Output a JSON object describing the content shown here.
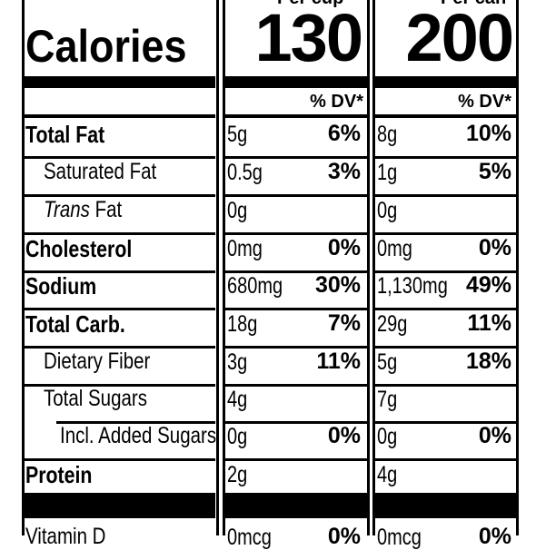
{
  "columns": [
    {
      "serving_header": "Per cup",
      "calories": "130"
    },
    {
      "serving_header": "Per can",
      "calories": "200"
    }
  ],
  "calories_label": "Calories",
  "dv_header": "% DV*",
  "rows": [
    {
      "label": "Total Fat",
      "bold": true,
      "italic_prefix": "",
      "values": [
        {
          "amount": "5g",
          "dv": "6%"
        },
        {
          "amount": "8g",
          "dv": "10%"
        }
      ]
    },
    {
      "label": "Saturated Fat",
      "bold": false,
      "italic_prefix": "",
      "values": [
        {
          "amount": "0.5g",
          "dv": "3%"
        },
        {
          "amount": "1g",
          "dv": "5%"
        }
      ]
    },
    {
      "label": "Fat",
      "bold": false,
      "italic_prefix": "Trans",
      "values": [
        {
          "amount": "0g",
          "dv": ""
        },
        {
          "amount": "0g",
          "dv": ""
        }
      ]
    },
    {
      "label": "Cholesterol",
      "bold": true,
      "italic_prefix": "",
      "values": [
        {
          "amount": "0mg",
          "dv": "0%"
        },
        {
          "amount": "0mg",
          "dv": "0%"
        }
      ]
    },
    {
      "label": "Sodium",
      "bold": true,
      "italic_prefix": "",
      "values": [
        {
          "amount": "680mg",
          "dv": "30%"
        },
        {
          "amount": "1,130mg",
          "dv": "49%"
        }
      ]
    },
    {
      "label": "Total Carb.",
      "bold": true,
      "italic_prefix": "",
      "values": [
        {
          "amount": "18g",
          "dv": "7%"
        },
        {
          "amount": "29g",
          "dv": "11%"
        }
      ]
    },
    {
      "label": "Dietary Fiber",
      "bold": false,
      "italic_prefix": "",
      "values": [
        {
          "amount": "3g",
          "dv": "11%"
        },
        {
          "amount": "5g",
          "dv": "18%"
        }
      ]
    },
    {
      "label": "Total Sugars",
      "bold": false,
      "italic_prefix": "",
      "values": [
        {
          "amount": "4g",
          "dv": ""
        },
        {
          "amount": "7g",
          "dv": ""
        }
      ]
    },
    {
      "label": "Incl. Added Sugars",
      "bold": false,
      "italic_prefix": "",
      "values": [
        {
          "amount": "0g",
          "dv": "0%"
        },
        {
          "amount": "0g",
          "dv": "0%"
        }
      ]
    },
    {
      "label": "Protein",
      "bold": true,
      "italic_prefix": "",
      "values": [
        {
          "amount": "2g",
          "dv": ""
        },
        {
          "amount": "4g",
          "dv": ""
        }
      ]
    },
    {
      "label": "Vitamin D",
      "bold": false,
      "italic_prefix": "",
      "values": [
        {
          "amount": "0mcg",
          "dv": "0%"
        },
        {
          "amount": "0mcg",
          "dv": "0%"
        }
      ]
    }
  ]
}
